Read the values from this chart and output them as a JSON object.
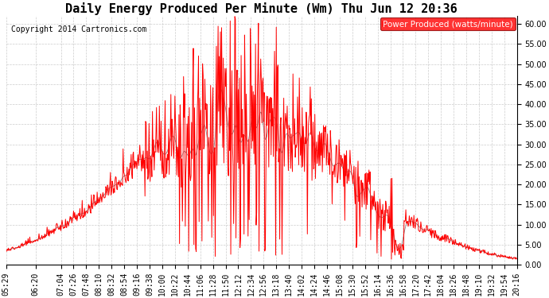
{
  "title": "Daily Energy Produced Per Minute (Wm) Thu Jun 12 20:36",
  "copyright": "Copyright 2014 Cartronics.com",
  "legend_label": "Power Produced (watts/minute)",
  "ylim": [
    0,
    62
  ],
  "yticks": [
    0.0,
    5.0,
    10.0,
    15.0,
    20.0,
    25.0,
    30.0,
    35.0,
    40.0,
    45.0,
    50.0,
    55.0,
    60.0
  ],
  "ytick_labels": [
    "0.00",
    "5.00",
    "10.00",
    "15.00",
    "20.00",
    "25.00",
    "30.00",
    "35.00",
    "40.00",
    "45.00",
    "50.00",
    "55.00",
    "60.00"
  ],
  "background_color": "#ffffff",
  "plot_bg_color": "#ffffff",
  "grid_color": "#cccccc",
  "line_color": "#ff0000",
  "gray_line_color": "#888888",
  "title_fontsize": 11,
  "tick_fontsize": 7,
  "copyright_fontsize": 7,
  "legend_fontsize": 7.5,
  "tick_labels": [
    "05:29",
    "06:20",
    "07:04",
    "07:26",
    "07:48",
    "08:10",
    "08:32",
    "08:54",
    "09:16",
    "09:38",
    "10:00",
    "10:22",
    "10:44",
    "11:06",
    "11:28",
    "11:50",
    "12:12",
    "12:34",
    "12:56",
    "13:18",
    "13:40",
    "14:02",
    "14:24",
    "14:46",
    "15:08",
    "15:30",
    "15:52",
    "16:14",
    "16:36",
    "16:58",
    "17:20",
    "17:42",
    "18:04",
    "18:26",
    "18:48",
    "19:10",
    "19:32",
    "19:54",
    "20:16"
  ]
}
